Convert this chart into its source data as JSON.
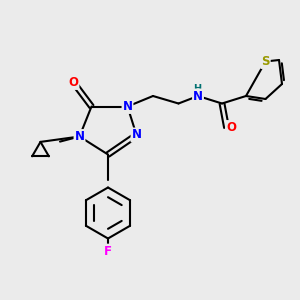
{
  "bg_color": "#ebebeb",
  "bond_color": "#000000",
  "bond_width": 1.5,
  "atom_colors": {
    "N": "#0000ff",
    "O": "#ff0000",
    "S": "#999900",
    "F": "#ff00ff",
    "H": "#007070",
    "C": "#000000"
  },
  "fs": 8.5
}
